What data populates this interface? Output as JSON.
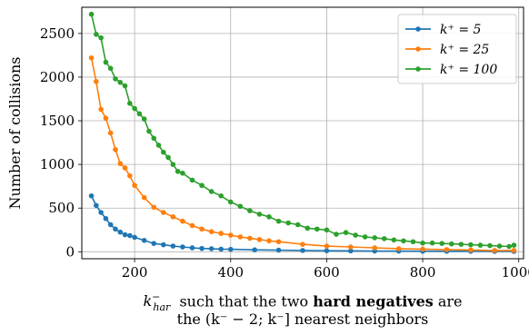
{
  "chart_data": {
    "type": "line",
    "ylabel": "Number of collisions",
    "xlabel_line1": {
      "prefix_var": "k",
      "prefix_sup": "−",
      "prefix_sub": "har",
      "text1": "  such that the two ",
      "bold": "hard negatives",
      "text2": " are"
    },
    "xlabel_line2": "the (k⁻ − 2; k⁻] nearest neighbors",
    "xlim": [
      90,
      1010
    ],
    "ylim": [
      -80,
      2800
    ],
    "xticks": [
      200,
      400,
      600,
      800,
      1000
    ],
    "yticks": [
      0,
      500,
      1000,
      1500,
      2000,
      2500
    ],
    "grid": true,
    "legend_position": "top-right",
    "series": [
      {
        "name": "k⁺ = 5",
        "color": "#1f77b4",
        "x": [
          110,
          120,
          130,
          140,
          150,
          160,
          170,
          180,
          190,
          200,
          220,
          240,
          260,
          280,
          300,
          320,
          340,
          360,
          380,
          400,
          450,
          500,
          550,
          600,
          650,
          700,
          750,
          800,
          850,
          900,
          950,
          990
        ],
        "y": [
          640,
          530,
          450,
          380,
          310,
          260,
          225,
          195,
          185,
          165,
          130,
          95,
          80,
          65,
          55,
          45,
          38,
          35,
          30,
          28,
          22,
          18,
          15,
          12,
          10,
          8,
          7,
          6,
          5,
          5,
          4,
          4
        ]
      },
      {
        "name": "k⁺ = 25",
        "color": "#ff7f0e",
        "x": [
          110,
          120,
          130,
          140,
          150,
          160,
          170,
          180,
          190,
          200,
          220,
          240,
          260,
          280,
          300,
          320,
          340,
          360,
          380,
          400,
          420,
          440,
          460,
          480,
          500,
          550,
          600,
          650,
          700,
          750,
          800,
          850,
          900,
          950,
          990
        ],
        "y": [
          2220,
          1950,
          1630,
          1530,
          1360,
          1170,
          1010,
          960,
          870,
          760,
          620,
          510,
          450,
          400,
          350,
          300,
          260,
          230,
          210,
          190,
          170,
          155,
          140,
          125,
          115,
          85,
          65,
          55,
          45,
          35,
          30,
          25,
          20,
          15,
          15
        ]
      },
      {
        "name": "k⁺ = 100",
        "color": "#2ca02c",
        "x": [
          110,
          120,
          130,
          140,
          150,
          160,
          170,
          180,
          190,
          200,
          210,
          220,
          230,
          240,
          250,
          260,
          270,
          280,
          290,
          300,
          320,
          340,
          360,
          380,
          400,
          420,
          440,
          460,
          480,
          500,
          520,
          540,
          560,
          580,
          600,
          620,
          640,
          660,
          680,
          700,
          720,
          740,
          760,
          780,
          800,
          820,
          840,
          860,
          880,
          900,
          920,
          940,
          960,
          980,
          990
        ],
        "y": [
          2720,
          2490,
          2450,
          2170,
          2100,
          1980,
          1940,
          1900,
          1700,
          1640,
          1580,
          1520,
          1380,
          1300,
          1220,
          1140,
          1080,
          1000,
          920,
          900,
          820,
          760,
          690,
          640,
          570,
          520,
          470,
          430,
          400,
          350,
          330,
          310,
          270,
          260,
          250,
          200,
          220,
          190,
          170,
          160,
          150,
          135,
          125,
          115,
          100,
          100,
          95,
          90,
          85,
          80,
          75,
          70,
          65,
          60,
          75
        ]
      }
    ]
  }
}
